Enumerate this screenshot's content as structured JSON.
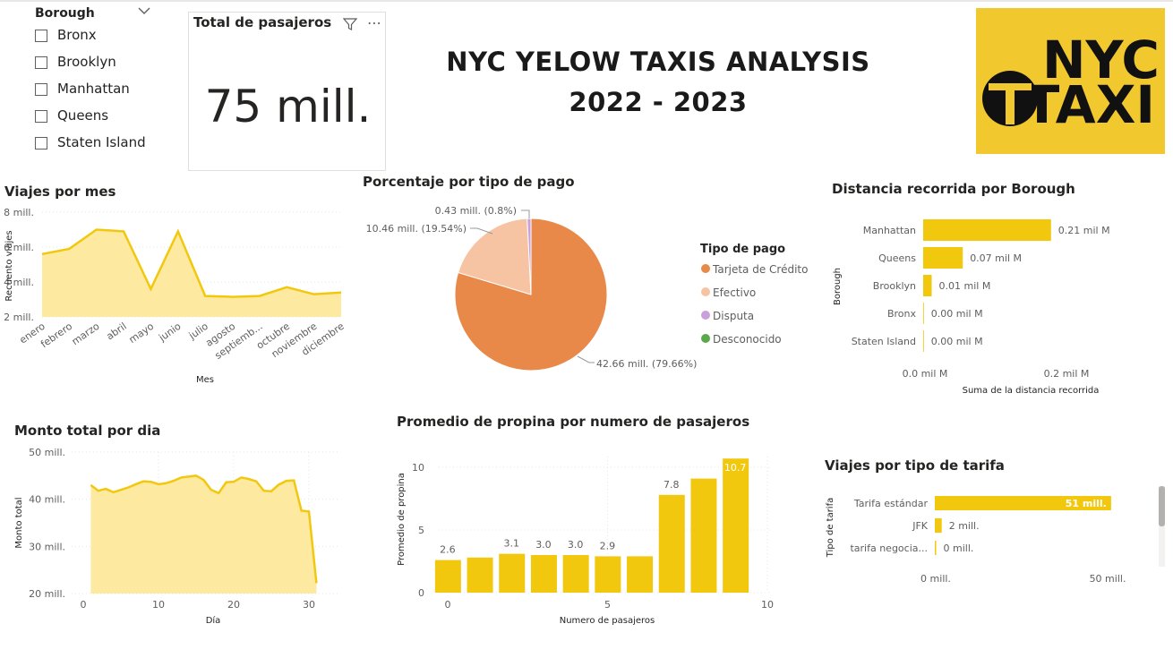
{
  "slicer": {
    "title": "Borough",
    "items": [
      "Bronx",
      "Brooklyn",
      "Manhattan",
      "Queens",
      "Staten Island"
    ]
  },
  "card": {
    "title": "Total de pasajeros",
    "value": "75 mill.",
    "more": "⋯"
  },
  "header": {
    "line1": "NYC YELOW TAXIS ANALYSIS",
    "line2": "2022 - 2023"
  },
  "logo": {
    "line1": "NYC",
    "line2": "TAXI"
  },
  "colors": {
    "accent": "#f2c80f",
    "area_fill": "#fde9a0",
    "pie_credit": "#e8894a",
    "pie_cash": "#f6c4a3",
    "pie_dispute": "#c9a0dc",
    "pie_unknown": "#5ba84a",
    "logo_bg": "#f2c82f"
  },
  "charts": {
    "monthly": {
      "title": "Viajes por mes",
      "xlabel": "Mes",
      "ylabel": "Recuento viajes",
      "ytick_labels": [
        "8 mill.",
        "6 mill.",
        "4 mill.",
        "2 mill."
      ],
      "xtick_labels": [
        "enero",
        "febrero",
        "marzo",
        "abril",
        "mayo",
        "junio",
        "julio",
        "agosto",
        "septiemb...",
        "octubre",
        "noviembre",
        "diciembre"
      ]
    },
    "payment": {
      "title": "Porcentaje por tipo de pago",
      "legend_title": "Tipo de pago",
      "legend": [
        "Tarjeta de Crédito",
        "Efectivo",
        "Disputa",
        "Desconocido"
      ],
      "labels": [
        "42.66 mill. (79.66%)",
        "10.46 mill. (19.54%)",
        "0.43 mill. (0.8%)"
      ]
    },
    "distance": {
      "title": "Distancia recorrida por Borough",
      "xlabel": "Suma de la distancia recorrida",
      "ylabel": "Borough",
      "categories": [
        "Manhattan",
        "Queens",
        "Brooklyn",
        "Bronx",
        "Staten Island"
      ],
      "value_labels": [
        "0.21 mil M",
        "0.07 mil M",
        "0.01 mil M",
        "0.00 mil M",
        "0.00 mil M"
      ],
      "xtick_labels": [
        "0.0 mil M",
        "0.2 mil M"
      ]
    },
    "daily": {
      "title": "Monto total por dia",
      "xlabel": "Día",
      "ylabel": "Monto total",
      "ytick_labels": [
        "50 mill.",
        "40 mill.",
        "30 mill.",
        "20 mill."
      ],
      "xtick_labels": [
        "0",
        "10",
        "20",
        "30"
      ]
    },
    "tips": {
      "title": "Promedio de propina por numero de pasajeros",
      "xlabel": "Numero de pasajeros",
      "ylabel": "Promedio de propina",
      "ytick_labels": [
        "10",
        "5",
        "0"
      ],
      "xtick_labels": [
        "0",
        "5",
        "10"
      ],
      "data_labels": [
        "2.6",
        "3.1",
        "3.0",
        "3.0",
        "2.9",
        "7.8",
        "10.7"
      ]
    },
    "fare": {
      "title": "Viajes por tipo de tarifa",
      "ylabel": "Tipo de tarifa",
      "categories": [
        "Tarifa estándar",
        "JFK",
        "tarifa negocia..."
      ],
      "value_labels": [
        "51 mill.",
        "2 mill.",
        "0 mill."
      ],
      "xtick_labels": [
        "0 mill.",
        "50 mill."
      ]
    }
  },
  "chart_data": [
    {
      "type": "area",
      "title": "Viajes por mes",
      "xlabel": "Mes",
      "ylabel": "Recuento viajes",
      "categories": [
        "enero",
        "febrero",
        "marzo",
        "abril",
        "mayo",
        "junio",
        "julio",
        "agosto",
        "septiemb...",
        "octubre",
        "noviembre",
        "diciembre"
      ],
      "values": [
        5.6,
        5.9,
        7.0,
        6.9,
        3.6,
        6.9,
        3.2,
        3.15,
        3.2,
        3.7,
        3.3,
        3.4
      ],
      "unit": "mill.",
      "ylim": [
        2,
        8
      ]
    },
    {
      "type": "pie",
      "title": "Porcentaje por tipo de pago",
      "categories": [
        "Tarjeta de Crédito",
        "Efectivo",
        "Disputa",
        "Desconocido"
      ],
      "values": [
        42.66,
        10.46,
        0.43,
        0.0
      ],
      "percent": [
        79.66,
        19.54,
        0.8,
        0.0
      ],
      "legend": "right"
    },
    {
      "type": "bar",
      "orientation": "horizontal",
      "title": "Distancia recorrida por Borough",
      "xlabel": "Suma de la distancia recorrida",
      "ylabel": "Borough",
      "categories": [
        "Manhattan",
        "Queens",
        "Brooklyn",
        "Bronx",
        "Staten Island"
      ],
      "values": [
        0.21,
        0.065,
        0.014,
        0.001,
        0.0005
      ],
      "xlim": [
        0,
        0.2
      ]
    },
    {
      "type": "area",
      "title": "Monto total por dia",
      "xlabel": "Día",
      "ylabel": "Monto total",
      "x": [
        1,
        2,
        3,
        4,
        5,
        6,
        7,
        8,
        9,
        10,
        11,
        12,
        13,
        14,
        15,
        16,
        17,
        18,
        19,
        20,
        21,
        22,
        23,
        24,
        25,
        26,
        27,
        28,
        29,
        30,
        31
      ],
      "values": [
        43.0,
        41.8,
        42.2,
        41.5,
        42.0,
        42.5,
        43.2,
        43.8,
        43.7,
        43.2,
        43.4,
        43.9,
        44.6,
        44.8,
        45.0,
        44.1,
        42.0,
        41.3,
        43.6,
        43.7,
        44.6,
        44.3,
        43.8,
        41.8,
        41.7,
        43.1,
        43.9,
        44.0,
        37.6,
        37.4,
        22.2
      ],
      "unit": "mill.",
      "ylim": [
        20,
        50
      ]
    },
    {
      "type": "bar",
      "title": "Promedio de propina por numero de pasajeros",
      "xlabel": "Numero de pasajeros",
      "ylabel": "Promedio de propina",
      "x": [
        0,
        1,
        2,
        3,
        4,
        5,
        6,
        7,
        8,
        9
      ],
      "values": [
        2.6,
        2.8,
        3.1,
        3.0,
        3.0,
        2.9,
        2.9,
        7.8,
        9.1,
        10.7
      ],
      "labeled": [
        true,
        false,
        true,
        true,
        true,
        true,
        false,
        true,
        false,
        true
      ],
      "ylim": [
        0,
        11
      ]
    },
    {
      "type": "bar",
      "orientation": "horizontal",
      "title": "Viajes por tipo de tarifa",
      "ylabel": "Tipo de tarifa",
      "categories": [
        "Tarifa estándar",
        "JFK",
        "tarifa negocia..."
      ],
      "values": [
        51,
        2,
        0.3
      ],
      "unit": "mill.",
      "xlim": [
        0,
        50
      ]
    }
  ]
}
